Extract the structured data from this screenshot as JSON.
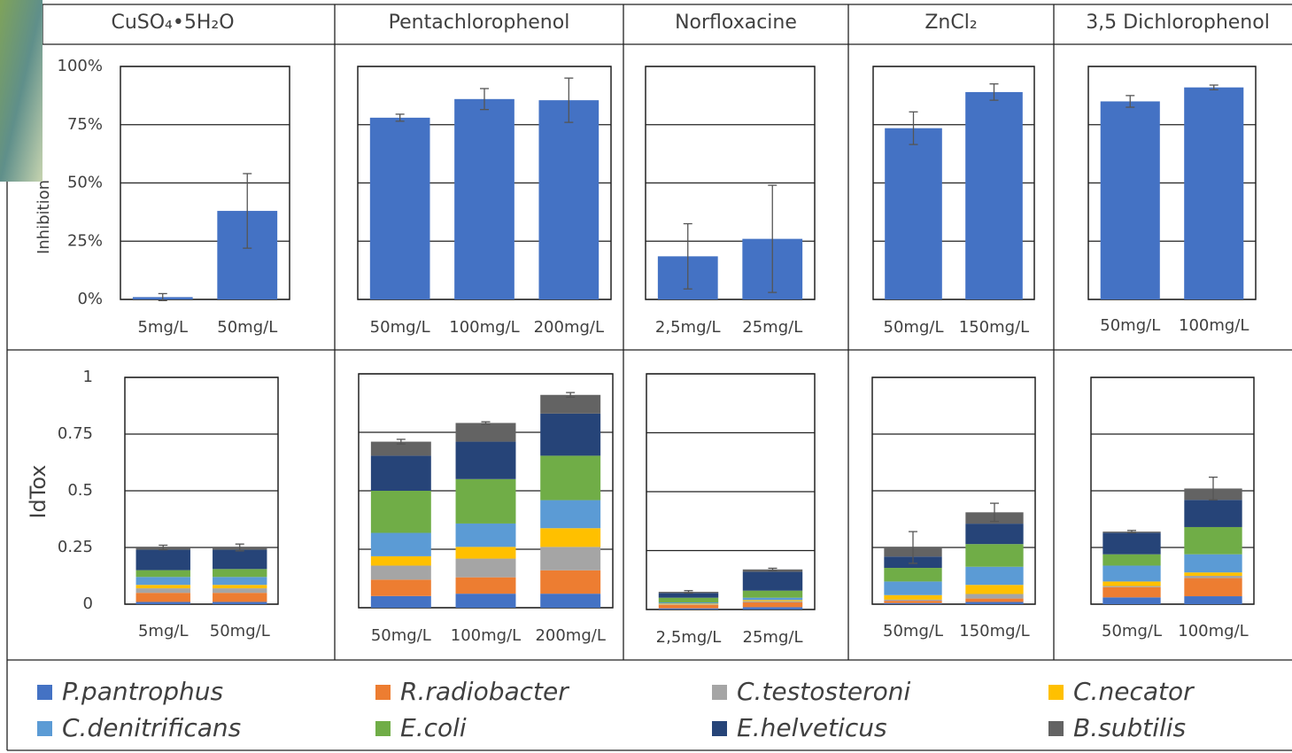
{
  "chart_data": [
    {
      "type": "bar",
      "title": "CuSO₄•5H₂O",
      "ylabel": "Inhibition",
      "categories": [
        "5mg/L",
        "50mg/L"
      ],
      "values": [
        1,
        38
      ],
      "errors": [
        1.5,
        16
      ],
      "color": "#4472c4",
      "ylim": [
        0,
        100
      ],
      "yticks": [
        {
          "value": 0,
          "label": "0%"
        },
        {
          "value": 25,
          "label": "25%"
        },
        {
          "value": 50,
          "label": "50%"
        },
        {
          "value": 75,
          "label": "75%"
        },
        {
          "value": 100,
          "label": "100%"
        }
      ],
      "grid": true
    },
    {
      "type": "bar",
      "title": "Pentachlorophenol",
      "categories": [
        "50mg/L",
        "100mg/L",
        "200mg/L"
      ],
      "values": [
        78,
        86,
        85.5
      ],
      "errors": [
        1.5,
        4.5,
        9.5
      ],
      "color": "#4472c4",
      "ylim": [
        0,
        100
      ],
      "yticks": [
        0,
        25,
        50,
        75,
        100
      ],
      "grid": true
    },
    {
      "type": "bar",
      "title": "Norfloxacine",
      "categories": [
        "2,5mg/L",
        "25mg/L"
      ],
      "values": [
        18.5,
        26
      ],
      "errors": [
        14,
        23
      ],
      "color": "#4472c4",
      "ylim": [
        0,
        100
      ],
      "yticks": [
        0,
        25,
        50,
        75,
        100
      ],
      "grid": true
    },
    {
      "type": "bar",
      "title": "ZnCl₂",
      "categories": [
        "50mg/L",
        "150mg/L"
      ],
      "values": [
        73.5,
        89
      ],
      "errors": [
        7,
        3.5
      ],
      "color": "#4472c4",
      "ylim": [
        0,
        100
      ],
      "yticks": [
        0,
        25,
        50,
        75,
        100
      ],
      "grid": true
    },
    {
      "type": "bar",
      "title": "3,5 Dichlorophenol",
      "categories": [
        "50mg/L",
        "100mg/L"
      ],
      "values": [
        85,
        91
      ],
      "errors": [
        2.5,
        1
      ],
      "color": "#4472c4",
      "ylim": [
        0,
        100
      ],
      "yticks": [
        0,
        25,
        50,
        75,
        100
      ],
      "grid": true
    },
    {
      "type": "stacked_bar",
      "ylabel": "IdTox",
      "categories": [
        "5mg/L",
        "50mg/L"
      ],
      "ylim": [
        0,
        1
      ],
      "yticks": [
        0,
        0.25,
        0.5,
        0.75,
        1
      ],
      "grid": true,
      "errors": [
        0.01,
        0.015
      ],
      "series": [
        {
          "values": [
            0.01,
            0.01
          ]
        },
        {
          "values": [
            0.04,
            0.04
          ]
        },
        {
          "values": [
            0.02,
            0.02
          ]
        },
        {
          "values": [
            0.015,
            0.015
          ]
        },
        {
          "values": [
            0.035,
            0.035
          ]
        },
        {
          "values": [
            0.03,
            0.035
          ]
        },
        {
          "values": [
            0.09,
            0.085
          ]
        },
        {
          "values": [
            0.01,
            0.01
          ]
        }
      ]
    },
    {
      "type": "stacked_bar",
      "categories": [
        "50mg/L",
        "100mg/L",
        "200mg/L"
      ],
      "ylim": [
        0,
        1
      ],
      "yticks": [
        0,
        0.25,
        0.5,
        0.75,
        1
      ],
      "grid": true,
      "errors": [
        0.01,
        0.005,
        0.01
      ],
      "series": [
        {
          "values": [
            0.05,
            0.06,
            0.06
          ]
        },
        {
          "values": [
            0.07,
            0.07,
            0.1
          ]
        },
        {
          "values": [
            0.06,
            0.08,
            0.1
          ]
        },
        {
          "values": [
            0.04,
            0.05,
            0.08
          ]
        },
        {
          "values": [
            0.1,
            0.1,
            0.12
          ]
        },
        {
          "values": [
            0.18,
            0.19,
            0.19
          ]
        },
        {
          "values": [
            0.15,
            0.16,
            0.18
          ]
        },
        {
          "values": [
            0.06,
            0.08,
            0.08
          ]
        }
      ]
    },
    {
      "type": "stacked_bar",
      "categories": [
        "2,5mg/L",
        "25mg/L"
      ],
      "ylim": [
        0,
        1
      ],
      "yticks": [
        0,
        0.25,
        0.5,
        0.75,
        1
      ],
      "grid": true,
      "errors": [
        0.005,
        0.005
      ],
      "series": [
        {
          "values": [
            0.005,
            0.01
          ]
        },
        {
          "values": [
            0.015,
            0.02
          ]
        },
        {
          "values": [
            0.002,
            0.005
          ]
        },
        {
          "values": [
            0.003,
            0.005
          ]
        },
        {
          "values": [
            0.005,
            0.01
          ]
        },
        {
          "values": [
            0.02,
            0.03
          ]
        },
        {
          "values": [
            0.02,
            0.08
          ]
        },
        {
          "values": [
            0.005,
            0.01
          ]
        }
      ]
    },
    {
      "type": "stacked_bar",
      "categories": [
        "50mg/L",
        "150mg/L"
      ],
      "ylim": [
        0,
        1
      ],
      "yticks": [
        0,
        0.25,
        0.5,
        0.75,
        1
      ],
      "grid": true,
      "errors": [
        0.07,
        0.04
      ],
      "series": [
        {
          "values": [
            0.005,
            0.01
          ]
        },
        {
          "values": [
            0.01,
            0.015
          ]
        },
        {
          "values": [
            0.005,
            0.02
          ]
        },
        {
          "values": [
            0.02,
            0.04
          ]
        },
        {
          "values": [
            0.06,
            0.08
          ]
        },
        {
          "values": [
            0.06,
            0.1
          ]
        },
        {
          "values": [
            0.05,
            0.09
          ]
        },
        {
          "values": [
            0.04,
            0.05
          ]
        }
      ]
    },
    {
      "type": "stacked_bar",
      "categories": [
        "50mg/L",
        "100mg/L"
      ],
      "ylim": [
        0,
        1
      ],
      "yticks": [
        0,
        0.25,
        0.5,
        0.75,
        1
      ],
      "grid": true,
      "errors": [
        0.005,
        0.05
      ],
      "series": [
        {
          "values": [
            0.03,
            0.035
          ]
        },
        {
          "values": [
            0.045,
            0.08
          ]
        },
        {
          "values": [
            0.005,
            0.01
          ]
        },
        {
          "values": [
            0.02,
            0.015
          ]
        },
        {
          "values": [
            0.07,
            0.08
          ]
        },
        {
          "values": [
            0.05,
            0.12
          ]
        },
        {
          "values": [
            0.095,
            0.12
          ]
        },
        {
          "values": [
            0.005,
            0.05
          ]
        }
      ]
    }
  ],
  "legend": [
    {
      "name": "P.pantrophus",
      "color": "#4472c4"
    },
    {
      "name": "R.radiobacter",
      "color": "#ed7d31"
    },
    {
      "name": "C.testosteroni",
      "color": "#a5a5a5"
    },
    {
      "name": "C.necator",
      "color": "#ffc000"
    },
    {
      "name": "C.denitrificans",
      "color": "#5b9bd5"
    },
    {
      "name": "E.coli",
      "color": "#70ad47"
    },
    {
      "name": "E.helveticus",
      "color": "#264478"
    },
    {
      "name": "B.subtilis",
      "color": "#636363"
    }
  ]
}
